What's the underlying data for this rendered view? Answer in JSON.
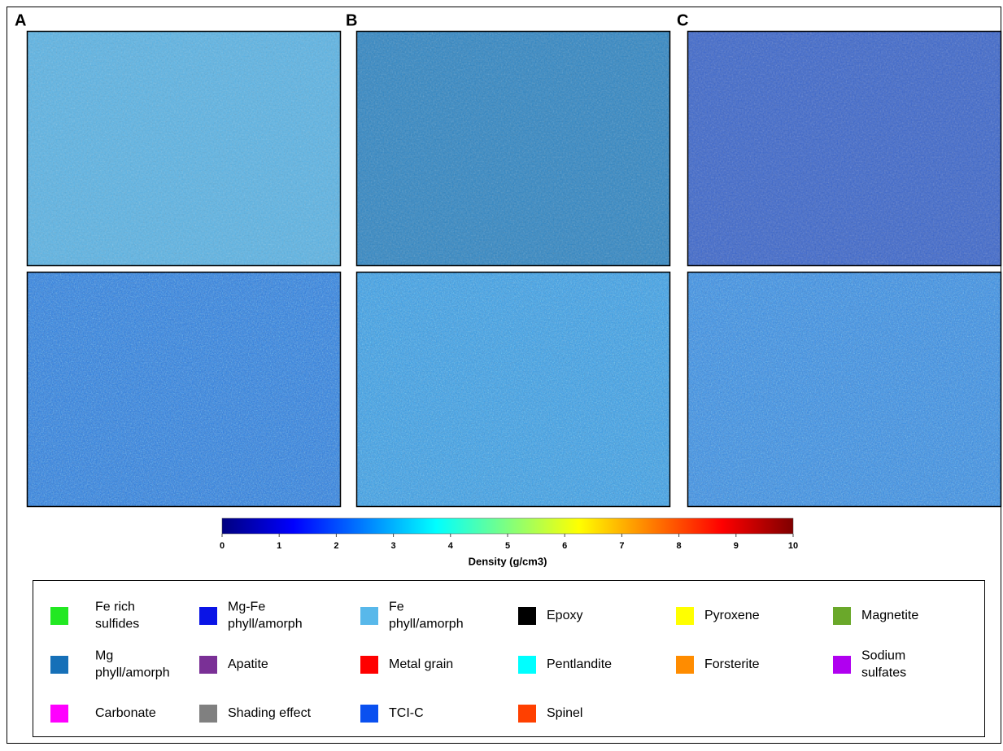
{
  "panels": [
    {
      "label": "A"
    },
    {
      "label": "B"
    },
    {
      "label": "C"
    }
  ],
  "colorbar": {
    "label": "Density (g/cm3)",
    "lim": [
      0,
      10
    ],
    "ticks": [
      0,
      1,
      2,
      3,
      4,
      5,
      6,
      7,
      8,
      9,
      10
    ],
    "colormap": [
      "#00007f",
      "#0000ff",
      "#007fff",
      "#00ffff",
      "#7fff7f",
      "#ffff00",
      "#ff7f00",
      "#ff0000",
      "#7f0000"
    ]
  },
  "legend": {
    "items": [
      {
        "lines": [
          "Fe rich",
          "sulfides"
        ],
        "color": "#22e822"
      },
      {
        "lines": [
          "Mg-Fe",
          "phyll/amorph"
        ],
        "color": "#0a14e6"
      },
      {
        "lines": [
          "Fe",
          "phyll/amorph"
        ],
        "color": "#58b8ea"
      },
      {
        "lines": [
          "Epoxy"
        ],
        "color": "#000000"
      },
      {
        "lines": [
          "Pyroxene"
        ],
        "color": "#ffff00"
      },
      {
        "lines": [
          "Magnetite"
        ],
        "color": "#6aa82a"
      },
      {
        "lines": [
          "Mg",
          "phyll/amorph"
        ],
        "color": "#1670b8"
      },
      {
        "lines": [
          "Apatite"
        ],
        "color": "#7a3096"
      },
      {
        "lines": [
          "Metal grain"
        ],
        "color": "#ff0000"
      },
      {
        "lines": [
          "Pentlandite"
        ],
        "color": "#00ffff"
      },
      {
        "lines": [
          "Forsterite"
        ],
        "color": "#ff8c00"
      },
      {
        "lines": [
          "Sodium",
          "sulfates"
        ],
        "color": "#b000f0"
      },
      {
        "lines": [
          "Carbonate"
        ],
        "color": "#ff00ff"
      },
      {
        "lines": [
          "Shading effect"
        ],
        "color": "#808080"
      },
      {
        "lines": [
          "TCI-C"
        ],
        "color": "#0a50f0"
      },
      {
        "lines": [
          "Spinel"
        ],
        "color": "#ff4000"
      }
    ]
  }
}
